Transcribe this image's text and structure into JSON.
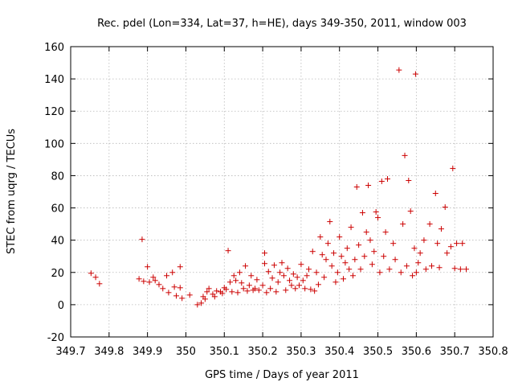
{
  "chart_data": {
    "type": "scatter",
    "title": "Rec. pdel (Lon=334, Lat=37, h=HE), days 349-350, 2011, window 003",
    "xlabel": "GPS time / Days of year 2011",
    "ylabel": "STEC from uqrg / TECUs",
    "xlim": [
      349.7,
      350.8
    ],
    "ylim": [
      -20,
      160
    ],
    "x_ticks": [
      349.7,
      349.8,
      349.9,
      350,
      350.1,
      350.2,
      350.3,
      350.4,
      350.5,
      350.6,
      350.7,
      350.8
    ],
    "x_tick_labels": [
      "349.7",
      "349.8",
      "349.9",
      "350",
      "350.1",
      "350.2",
      "350.3",
      "350.4",
      "350.5",
      "350.6",
      "350.7",
      "350.8"
    ],
    "y_ticks": [
      -20,
      0,
      20,
      40,
      60,
      80,
      100,
      120,
      140,
      160
    ],
    "y_tick_labels": [
      "-20",
      "0",
      "20",
      "40",
      "60",
      "80",
      "100",
      "120",
      "140",
      "160"
    ],
    "grid": true,
    "marker": "plus",
    "marker_color": "#cc0000",
    "series": [
      {
        "points": [
          [
            349.753,
            19.5
          ],
          [
            349.765,
            17
          ],
          [
            349.775,
            13
          ],
          [
            349.878,
            16
          ],
          [
            349.886,
            40.5
          ],
          [
            349.89,
            14.5
          ],
          [
            349.9,
            23.5
          ],
          [
            349.905,
            14
          ],
          [
            349.915,
            17
          ],
          [
            349.92,
            15
          ],
          [
            349.93,
            12.5
          ],
          [
            349.94,
            10
          ],
          [
            349.95,
            18
          ],
          [
            349.955,
            7.5
          ],
          [
            349.965,
            20
          ],
          [
            349.97,
            11
          ],
          [
            349.975,
            5.5
          ],
          [
            349.985,
            10.5
          ],
          [
            349.985,
            23.5
          ],
          [
            349.99,
            4
          ],
          [
            350.01,
            6
          ],
          [
            350.03,
            0
          ],
          [
            350.04,
            1
          ],
          [
            350.045,
            5
          ],
          [
            350.05,
            3.5
          ],
          [
            350.055,
            8
          ],
          [
            350.06,
            10
          ],
          [
            350.07,
            6.5
          ],
          [
            350.075,
            5
          ],
          [
            350.08,
            8.5
          ],
          [
            350.09,
            8
          ],
          [
            350.095,
            7
          ],
          [
            350.1,
            10.5
          ],
          [
            350.105,
            9.5
          ],
          [
            350.11,
            33.5
          ],
          [
            350.115,
            14
          ],
          [
            350.12,
            8
          ],
          [
            350.125,
            18
          ],
          [
            350.13,
            15
          ],
          [
            350.135,
            7.5
          ],
          [
            350.14,
            20
          ],
          [
            350.145,
            13.5
          ],
          [
            350.15,
            10
          ],
          [
            350.155,
            24
          ],
          [
            350.16,
            8.5
          ],
          [
            350.165,
            12
          ],
          [
            350.17,
            18
          ],
          [
            350.175,
            9
          ],
          [
            350.18,
            10
          ],
          [
            350.185,
            15.5
          ],
          [
            350.19,
            9
          ],
          [
            350.2,
            12
          ],
          [
            350.205,
            25.5
          ],
          [
            350.205,
            32
          ],
          [
            350.21,
            7.5
          ],
          [
            350.215,
            20.5
          ],
          [
            350.22,
            10
          ],
          [
            350.225,
            16.5
          ],
          [
            350.23,
            24.5
          ],
          [
            350.235,
            8
          ],
          [
            350.24,
            14
          ],
          [
            350.245,
            20
          ],
          [
            350.25,
            26
          ],
          [
            350.255,
            18
          ],
          [
            350.26,
            9
          ],
          [
            350.265,
            22.5
          ],
          [
            350.27,
            15
          ],
          [
            350.275,
            12
          ],
          [
            350.28,
            19
          ],
          [
            350.285,
            10
          ],
          [
            350.29,
            17
          ],
          [
            350.295,
            12
          ],
          [
            350.3,
            25
          ],
          [
            350.305,
            15
          ],
          [
            350.31,
            10
          ],
          [
            350.315,
            18
          ],
          [
            350.32,
            22
          ],
          [
            350.325,
            9.5
          ],
          [
            350.33,
            33
          ],
          [
            350.335,
            8.5
          ],
          [
            350.34,
            20
          ],
          [
            350.345,
            12.5
          ],
          [
            350.35,
            42
          ],
          [
            350.355,
            31
          ],
          [
            350.36,
            17
          ],
          [
            350.365,
            28
          ],
          [
            350.37,
            38
          ],
          [
            350.375,
            51.5
          ],
          [
            350.38,
            24
          ],
          [
            350.385,
            32
          ],
          [
            350.39,
            14
          ],
          [
            350.395,
            20
          ],
          [
            350.4,
            42
          ],
          [
            350.405,
            30
          ],
          [
            350.41,
            16
          ],
          [
            350.415,
            26
          ],
          [
            350.42,
            35
          ],
          [
            350.425,
            22
          ],
          [
            350.43,
            48
          ],
          [
            350.435,
            18
          ],
          [
            350.44,
            28
          ],
          [
            350.445,
            73
          ],
          [
            350.45,
            37
          ],
          [
            350.455,
            22
          ],
          [
            350.46,
            57
          ],
          [
            350.465,
            30
          ],
          [
            350.47,
            45
          ],
          [
            350.475,
            74
          ],
          [
            350.48,
            40
          ],
          [
            350.485,
            25
          ],
          [
            350.49,
            33
          ],
          [
            350.495,
            57.5
          ],
          [
            350.5,
            54
          ],
          [
            350.505,
            20
          ],
          [
            350.51,
            76.5
          ],
          [
            350.515,
            30
          ],
          [
            350.52,
            45
          ],
          [
            350.525,
            78
          ],
          [
            350.53,
            22
          ],
          [
            350.54,
            38
          ],
          [
            350.545,
            28
          ],
          [
            350.555,
            145.5
          ],
          [
            350.56,
            20
          ],
          [
            350.565,
            50
          ],
          [
            350.57,
            92.5
          ],
          [
            350.575,
            24
          ],
          [
            350.58,
            77
          ],
          [
            350.585,
            58
          ],
          [
            350.59,
            18
          ],
          [
            350.595,
            35
          ],
          [
            350.598,
            143
          ],
          [
            350.6,
            20
          ],
          [
            350.605,
            26
          ],
          [
            350.61,
            32
          ],
          [
            350.62,
            40
          ],
          [
            350.625,
            22
          ],
          [
            350.635,
            50
          ],
          [
            350.64,
            24
          ],
          [
            350.65,
            69
          ],
          [
            350.655,
            38
          ],
          [
            350.66,
            23
          ],
          [
            350.665,
            47
          ],
          [
            350.675,
            60.5
          ],
          [
            350.68,
            32
          ],
          [
            350.69,
            36
          ],
          [
            350.695,
            84.5
          ],
          [
            350.7,
            22.5
          ],
          [
            350.705,
            38
          ],
          [
            350.715,
            22
          ],
          [
            350.72,
            38
          ],
          [
            350.73,
            22
          ]
        ]
      }
    ]
  }
}
